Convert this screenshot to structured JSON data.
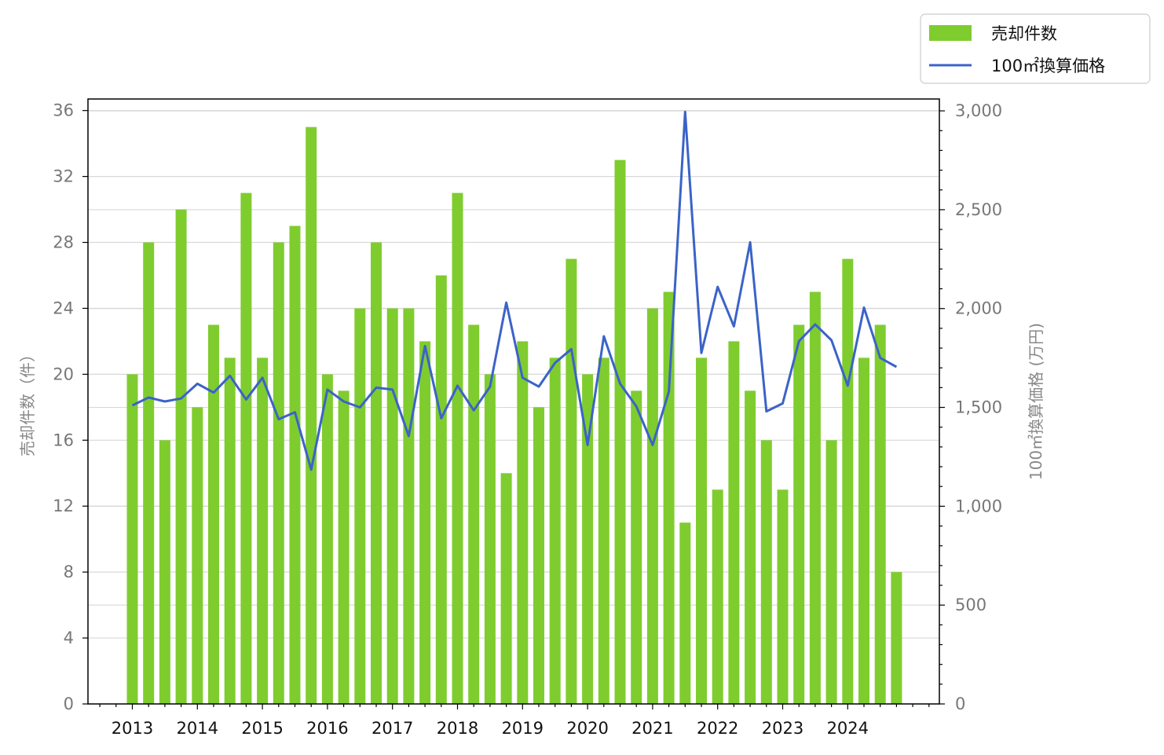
{
  "chart_data": {
    "type": "bar",
    "title": "",
    "xlabel": "",
    "ylabel": "売却件数（件）",
    "y2label": "100㎡換算価格 (万円)",
    "ylim": [
      0,
      36.7
    ],
    "y2lim": [
      0,
      3060
    ],
    "yticks": [
      0,
      4,
      8,
      12,
      16,
      20,
      24,
      28,
      32,
      36
    ],
    "y2ticks": [
      {
        "value": 0,
        "label": "0"
      },
      {
        "value": 500,
        "label": "500"
      },
      {
        "value": 1000,
        "label": "1,000"
      },
      {
        "value": 1500,
        "label": "1,500"
      },
      {
        "value": 2000,
        "label": "2,000"
      },
      {
        "value": 2500,
        "label": "2,500"
      },
      {
        "value": 3000,
        "label": "3,000"
      }
    ],
    "years": [
      "2013",
      "2014",
      "2015",
      "2016",
      "2017",
      "2018",
      "2019",
      "2020",
      "2021",
      "2022",
      "2023",
      "2024"
    ],
    "grid": true,
    "legend_position": "top-right",
    "colors": {
      "bars": "#7fcc2f",
      "line": "#3b63c8",
      "grid": "#d8d8d8"
    },
    "series": [
      {
        "name": "売却件数",
        "type": "bar",
        "axis": "left",
        "values": [
          20,
          28,
          16,
          30,
          18,
          23,
          21,
          31,
          21,
          28,
          29,
          35,
          20,
          19,
          24,
          28,
          24,
          24,
          22,
          26,
          31,
          23,
          20,
          14,
          22,
          18,
          21,
          27,
          20,
          21,
          33,
          19,
          24,
          25,
          11,
          21,
          13,
          22,
          19,
          16,
          13,
          23,
          25,
          16,
          27,
          21,
          23,
          8
        ]
      },
      {
        "name": "100㎡換算価格",
        "type": "line",
        "axis": "right",
        "values": [
          1510,
          1550,
          1530,
          1545,
          1620,
          1575,
          1660,
          1540,
          1650,
          1440,
          1475,
          1185,
          1590,
          1530,
          1500,
          1600,
          1590,
          1355,
          1810,
          1445,
          1610,
          1485,
          1605,
          2030,
          1650,
          1605,
          1725,
          1795,
          1310,
          1860,
          1620,
          1505,
          1310,
          1580,
          2995,
          1775,
          2110,
          1910,
          2335,
          1480,
          1520,
          1835,
          1920,
          1840,
          1610,
          2005,
          1750,
          1705
        ]
      }
    ]
  }
}
